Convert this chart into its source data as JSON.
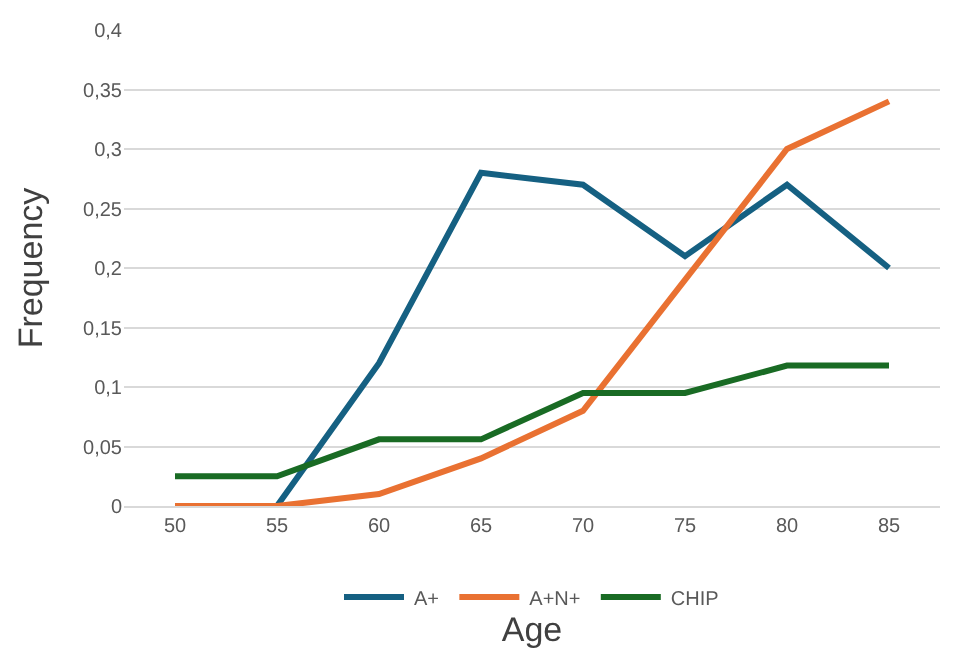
{
  "chart_data": {
    "type": "line",
    "xlabel": "Age",
    "ylabel": "Frequency",
    "categories": [
      "50",
      "55",
      "60",
      "65",
      "70",
      "75",
      "80",
      "85"
    ],
    "series": [
      {
        "name": "A+",
        "color": "#156082",
        "values": [
          null,
          0,
          0.12,
          0.28,
          0.27,
          0.21,
          0.27,
          0.2
        ]
      },
      {
        "name": "A+N+",
        "color": "#e97132",
        "values": [
          0,
          0,
          0.01,
          0.04,
          0.08,
          0.19,
          0.3,
          0.34
        ]
      },
      {
        "name": "CHIP",
        "color": "#196b24",
        "values": [
          0.025,
          0.025,
          0.056,
          0.056,
          0.095,
          0.095,
          0.118,
          0.118
        ]
      }
    ],
    "ylim": [
      0,
      0.4
    ],
    "yticks": [
      0,
      {
        "value": 0.05,
        "label": "0,05"
      },
      {
        "value": 0.1,
        "label": "0,1"
      },
      {
        "value": 0.15,
        "label": "0,15"
      },
      {
        "value": 0.2,
        "label": "0,2"
      },
      {
        "value": 0.25,
        "label": "0,25"
      },
      {
        "value": 0.3,
        "label": "0,3"
      },
      {
        "value": 0.35,
        "label": "0,35"
      },
      {
        "value": 0.4,
        "label": "0,4"
      }
    ],
    "grid": "y",
    "legend": "bottom",
    "marker": "none",
    "line_style": "solid"
  }
}
